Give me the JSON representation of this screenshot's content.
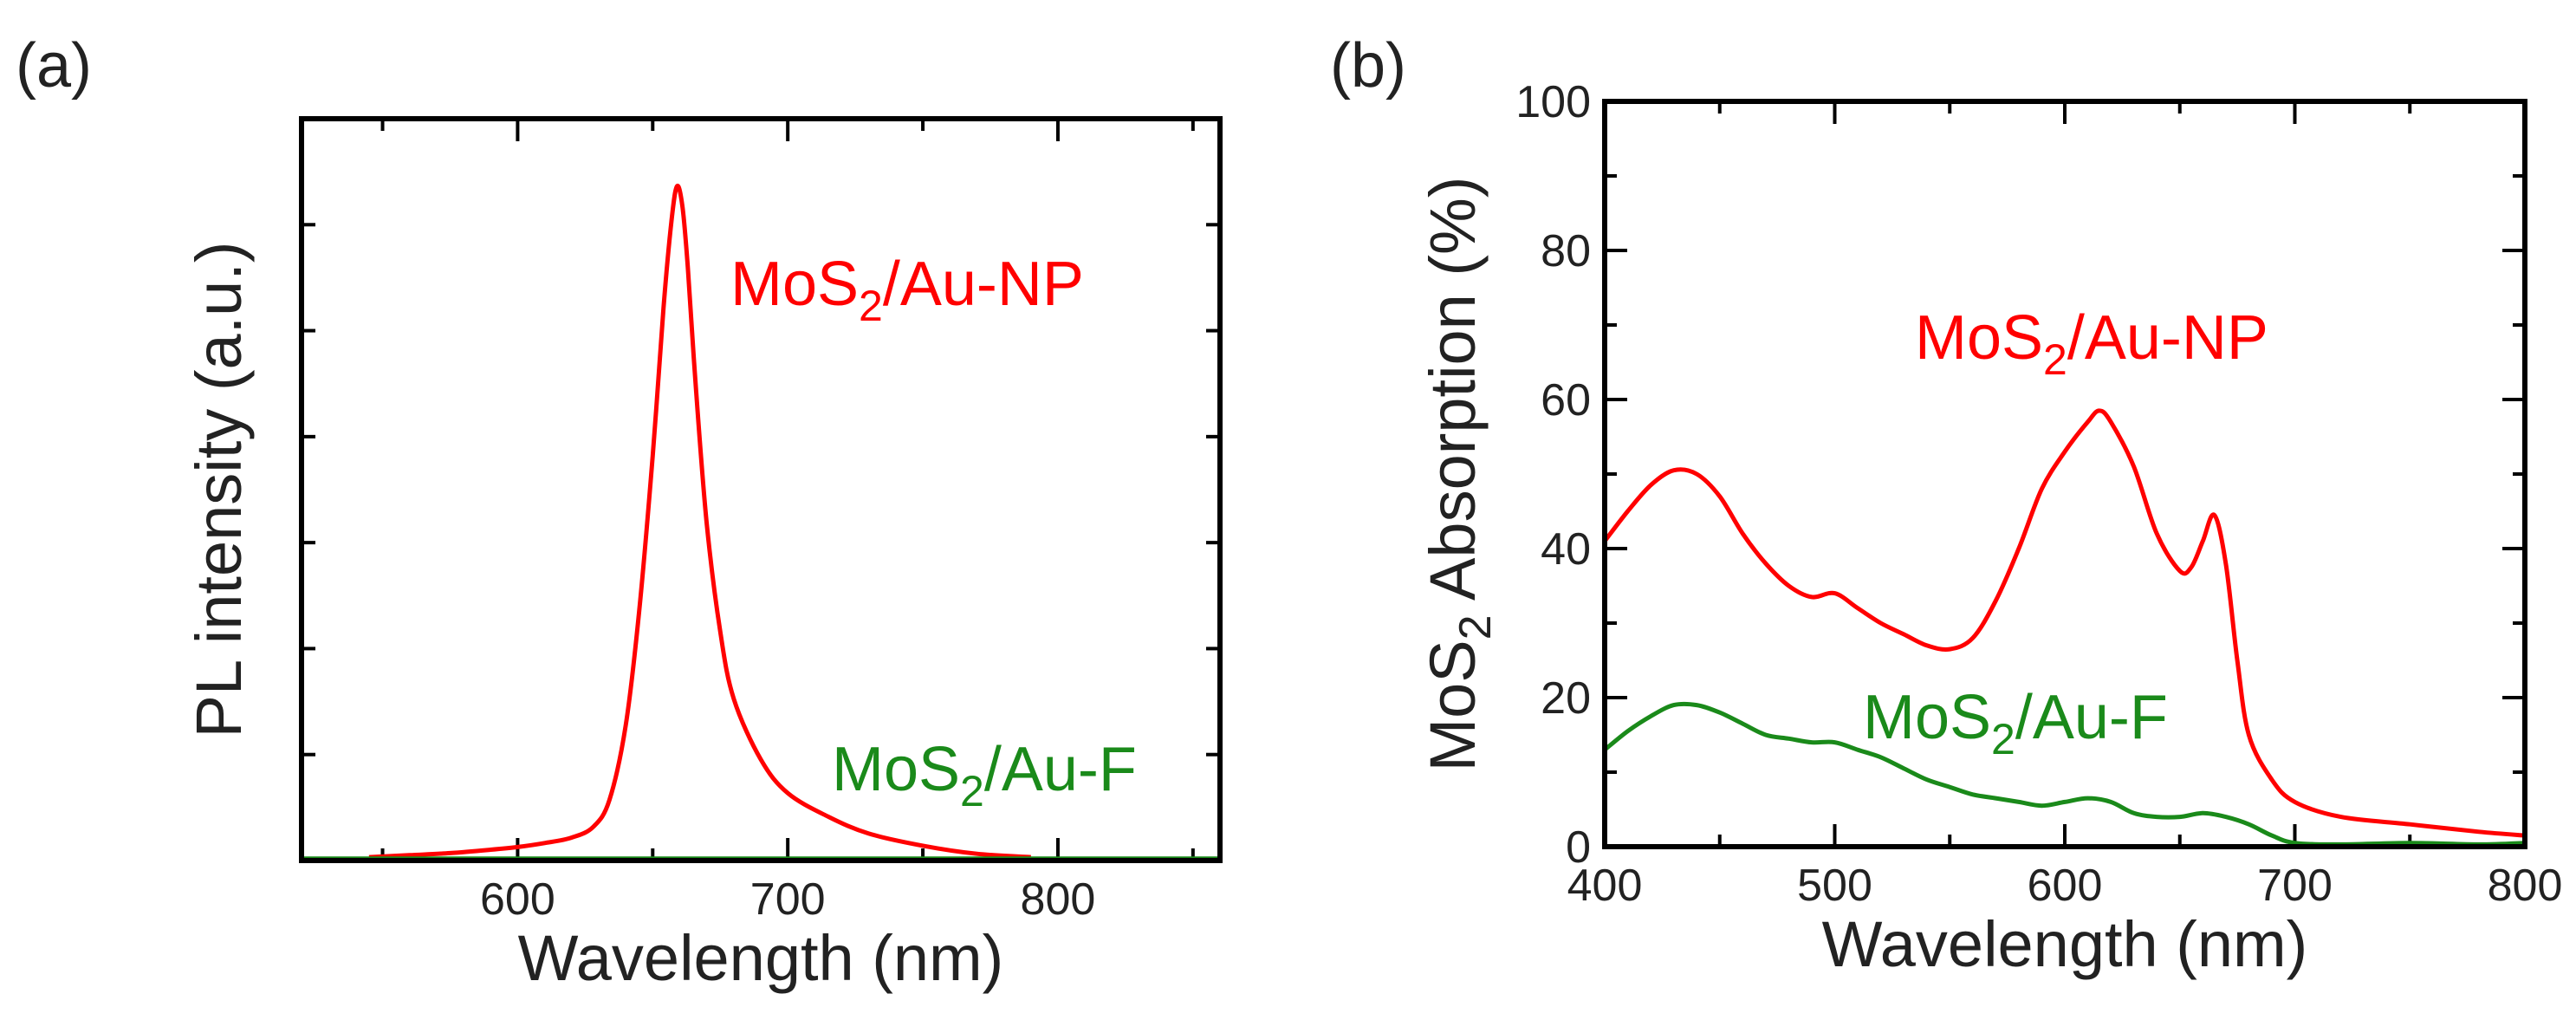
{
  "colors": {
    "red": "#ff0000",
    "green": "#1a8a1a",
    "axis": "#000000",
    "text": "#222222"
  },
  "chart_data": [
    {
      "panel_label": "(a)",
      "type": "line",
      "xlabel": "Wavelength (nm)",
      "ylabel": "PL intensity (a.u.)",
      "xlim": [
        520,
        860
      ],
      "ylim": [
        0,
        1.1
      ],
      "xticks": [
        600,
        700,
        800
      ],
      "xtick_labels": [
        "600",
        "700",
        "800"
      ],
      "yticks_labeled": false,
      "series": [
        {
          "name": "MoS2/Au-NP",
          "label_main": "MoS",
          "label_sub": "2",
          "label_rest": "/Au-NP",
          "color": "#ff0000",
          "x": [
            545,
            560,
            575,
            590,
            600,
            610,
            620,
            628,
            634,
            640,
            645,
            650,
            654,
            657,
            659,
            661,
            663,
            666,
            670,
            675,
            680,
            690,
            700,
            715,
            730,
            750,
            770,
            790
          ],
          "y": [
            0.005,
            0.008,
            0.011,
            0.016,
            0.02,
            0.026,
            0.034,
            0.05,
            0.09,
            0.2,
            0.37,
            0.6,
            0.82,
            0.95,
            1.0,
            0.97,
            0.88,
            0.7,
            0.5,
            0.34,
            0.24,
            0.15,
            0.1,
            0.065,
            0.04,
            0.022,
            0.01,
            0.005
          ]
        },
        {
          "name": "MoS2/Au-F",
          "label_main": "MoS",
          "label_sub": "2",
          "label_rest": "/Au-F",
          "color": "#1a8a1a",
          "x": [
            520,
            600,
            700,
            800,
            860
          ],
          "y": [
            0.003,
            0.003,
            0.003,
            0.003,
            0.003
          ]
        }
      ]
    },
    {
      "panel_label": "(b)",
      "type": "line",
      "xlabel": "Wavelength (nm)",
      "ylabel_main": "MoS",
      "ylabel_sub": "2",
      "ylabel_rest": " Absorption (%)",
      "xlim": [
        400,
        800
      ],
      "ylim": [
        0,
        100
      ],
      "xticks": [
        400,
        500,
        600,
        700,
        800
      ],
      "xtick_labels": [
        "400",
        "500",
        "600",
        "700",
        "800"
      ],
      "yticks": [
        0,
        20,
        40,
        60,
        80,
        100
      ],
      "ytick_labels": [
        "0",
        "20",
        "40",
        "60",
        "80",
        "100"
      ],
      "series": [
        {
          "name": "MoS2/Au-NP",
          "label_main": "MoS",
          "label_sub": "2",
          "label_rest": "/Au-NP",
          "color": "#ff0000",
          "x": [
            400,
            410,
            420,
            430,
            440,
            450,
            460,
            470,
            480,
            490,
            500,
            510,
            520,
            530,
            540,
            550,
            560,
            570,
            580,
            590,
            600,
            610,
            615,
            620,
            630,
            640,
            650,
            655,
            660,
            665,
            670,
            675,
            680,
            690,
            700,
            720,
            750,
            780,
            800
          ],
          "y": [
            41,
            45,
            48.5,
            50.5,
            50,
            47,
            42,
            38,
            35,
            33.5,
            34,
            32,
            30,
            28.5,
            27,
            26.5,
            28,
            33,
            40,
            48,
            53,
            57,
            58.5,
            57,
            51,
            42,
            37,
            37.5,
            41,
            44.5,
            38,
            25,
            15,
            9,
            6,
            4,
            3,
            2,
            1.5
          ]
        },
        {
          "name": "MoS2/Au-F",
          "label_main": "MoS",
          "label_sub": "2",
          "label_rest": "/Au-F",
          "color": "#1a8a1a",
          "x": [
            400,
            410,
            420,
            430,
            440,
            450,
            460,
            470,
            480,
            490,
            500,
            510,
            520,
            530,
            540,
            550,
            560,
            570,
            580,
            590,
            600,
            610,
            620,
            630,
            640,
            650,
            660,
            670,
            680,
            690,
            700,
            720,
            750,
            780,
            800
          ],
          "y": [
            13,
            15.5,
            17.5,
            19,
            19,
            18,
            16.5,
            15,
            14.5,
            14,
            14,
            13,
            12,
            10.5,
            9,
            8,
            7,
            6.5,
            6,
            5.5,
            6,
            6.5,
            6,
            4.5,
            4,
            4,
            4.5,
            4,
            3,
            1.5,
            0.5,
            0.3,
            0.5,
            0.3,
            0.5
          ]
        }
      ]
    }
  ]
}
